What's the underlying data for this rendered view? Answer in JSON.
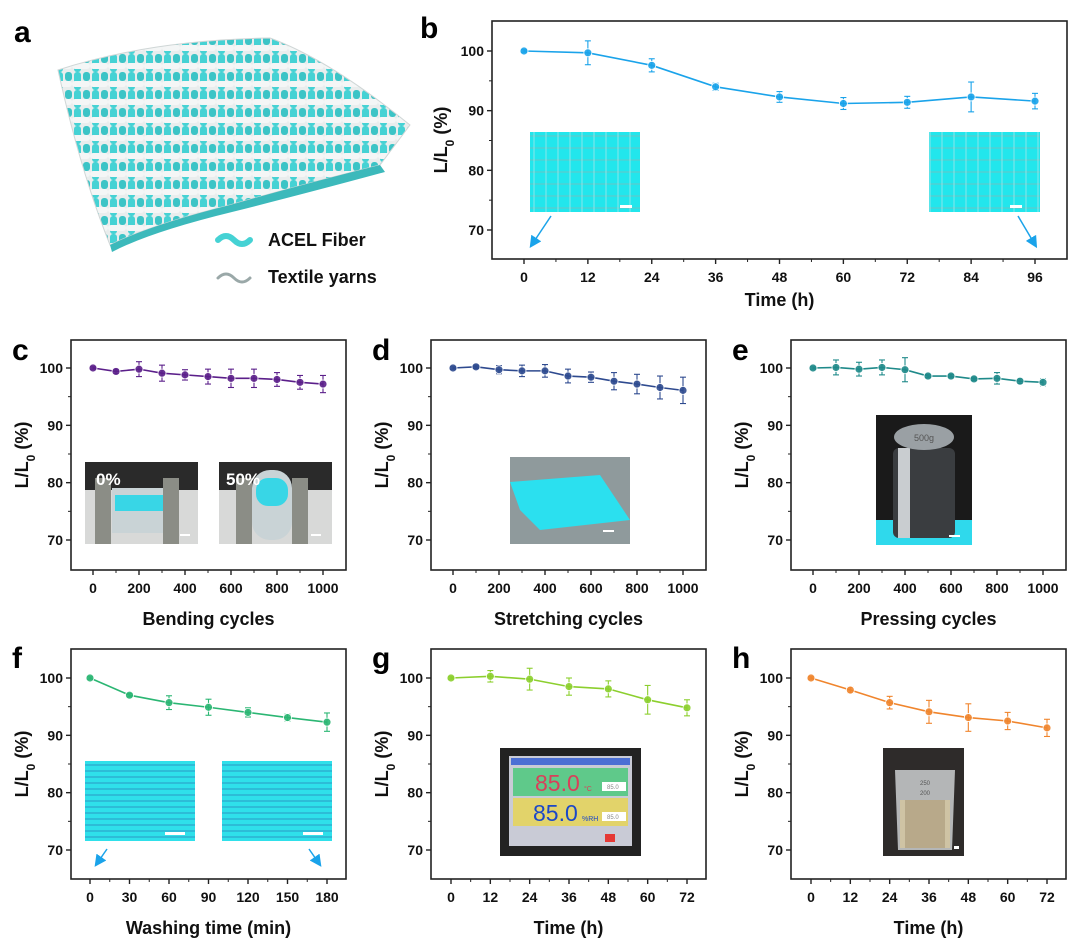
{
  "figure": {
    "panel_a": {
      "label": "a",
      "legend": [
        {
          "name": "ACEL Fiber",
          "color": "#3fd3d6"
        },
        {
          "name": "Textile yarns",
          "color": "#9aa8a8"
        }
      ]
    },
    "insets": {
      "scale_bar": "white",
      "e_weight_text": "500g",
      "g_screen_temp": "85.0",
      "g_screen_temp_unit": "°C",
      "g_screen_rh": "85.0",
      "g_screen_rh_unit": "%RH",
      "g_screen_sv1": "85.0",
      "g_screen_sv2": "85.0",
      "h_beaker_marks": [
        "250",
        "200"
      ],
      "c_left_label": "0%",
      "c_right_label": "50%"
    }
  },
  "chart_data": [
    {
      "id": "b",
      "label": "b",
      "type": "line",
      "title": "",
      "xlabel": "Time (h)",
      "ylabel": "L/L0 (%)",
      "x": [
        0,
        12,
        24,
        36,
        48,
        60,
        72,
        84,
        96
      ],
      "series": [
        {
          "name": "L/L0",
          "color": "#1aa3ea",
          "values": [
            100,
            99.7,
            97.6,
            94.0,
            92.3,
            91.2,
            91.4,
            92.3,
            91.6
          ],
          "errors": [
            0.2,
            2.0,
            1.1,
            0.6,
            0.9,
            1.0,
            1.0,
            2.5,
            1.3
          ]
        }
      ],
      "xticks": [
        0,
        12,
        24,
        36,
        48,
        60,
        72,
        84,
        96
      ],
      "yticks": [
        70,
        80,
        90,
        100
      ],
      "xlim": [
        -4,
        100
      ],
      "ylim": [
        65,
        105
      ],
      "annotations": [
        "inset photo at 0 h with arrow to x=0",
        "inset photo at 96 h with arrow to x=96"
      ]
    },
    {
      "id": "c",
      "label": "c",
      "type": "line",
      "xlabel": "Bending cycles",
      "ylabel": "L/L0 (%)",
      "x": [
        0,
        100,
        200,
        300,
        400,
        500,
        600,
        700,
        800,
        900,
        1000
      ],
      "series": [
        {
          "name": "L/L0",
          "color": "#5b1f8a",
          "values": [
            100,
            99.4,
            99.8,
            99.1,
            98.8,
            98.5,
            98.2,
            98.2,
            98.0,
            97.5,
            97.2
          ],
          "errors": [
            0.2,
            0.4,
            1.3,
            1.4,
            0.9,
            1.3,
            1.6,
            1.6,
            1.2,
            1.2,
            1.5
          ]
        }
      ],
      "xticks": [
        0,
        200,
        400,
        600,
        800,
        1000
      ],
      "yticks": [
        70,
        80,
        90,
        100
      ],
      "xlim": [
        -100,
        1100
      ],
      "ylim": [
        65,
        105
      ],
      "annotations": [
        "0%",
        "50%"
      ]
    },
    {
      "id": "d",
      "label": "d",
      "type": "line",
      "xlabel": "Stretching cycles",
      "ylabel": "L/L0 (%)",
      "x": [
        0,
        100,
        200,
        300,
        400,
        500,
        600,
        700,
        800,
        900,
        1000
      ],
      "series": [
        {
          "name": "L/L0",
          "color": "#2e4a8f",
          "values": [
            100,
            100.2,
            99.7,
            99.5,
            99.5,
            98.6,
            98.4,
            97.7,
            97.2,
            96.6,
            96.1
          ],
          "errors": [
            0.2,
            0.3,
            0.7,
            1.0,
            1.1,
            1.2,
            0.9,
            1.5,
            1.7,
            2.0,
            2.3
          ]
        }
      ],
      "xticks": [
        0,
        200,
        400,
        600,
        800,
        1000
      ],
      "yticks": [
        70,
        80,
        90,
        100
      ],
      "xlim": [
        -100,
        1100
      ],
      "ylim": [
        65,
        105
      ]
    },
    {
      "id": "e",
      "label": "e",
      "type": "line",
      "xlabel": "Pressing cycles",
      "ylabel": "L/L0 (%)",
      "x": [
        0,
        100,
        200,
        300,
        400,
        500,
        600,
        700,
        800,
        900,
        1000
      ],
      "series": [
        {
          "name": "L/L0",
          "color": "#1f8a8a",
          "values": [
            100,
            100.1,
            99.8,
            100.1,
            99.7,
            98.6,
            98.6,
            98.1,
            98.2,
            97.7,
            97.5
          ],
          "errors": [
            0.2,
            1.3,
            1.2,
            1.3,
            2.1,
            0.3,
            0.3,
            0.3,
            1.0,
            0.4,
            0.6
          ]
        }
      ],
      "xticks": [
        0,
        200,
        400,
        600,
        800,
        1000
      ],
      "yticks": [
        70,
        80,
        90,
        100
      ],
      "xlim": [
        -100,
        1100
      ],
      "ylim": [
        65,
        105
      ]
    },
    {
      "id": "f",
      "label": "f",
      "type": "line",
      "xlabel": "Washing time (min)",
      "ylabel": "L/L0 (%)",
      "x": [
        0,
        30,
        60,
        90,
        120,
        150,
        180
      ],
      "series": [
        {
          "name": "L/L0",
          "color": "#2bb673",
          "values": [
            100,
            97.0,
            95.7,
            94.9,
            94.0,
            93.1,
            92.3
          ],
          "errors": [
            0.2,
            0.3,
            1.2,
            1.4,
            0.8,
            0.6,
            1.6
          ]
        }
      ],
      "xticks": [
        0,
        30,
        60,
        90,
        120,
        150,
        180
      ],
      "yticks": [
        70,
        80,
        90,
        100
      ],
      "xlim": [
        -10,
        190
      ],
      "ylim": [
        65,
        105
      ],
      "annotations": [
        "inset photo at 0 min with arrow to x=0",
        "inset photo at 180 min with arrow to x=180"
      ]
    },
    {
      "id": "g",
      "label": "g",
      "type": "line",
      "xlabel": "Time (h)",
      "ylabel": "L/L0 (%)",
      "x": [
        0,
        12,
        24,
        36,
        48,
        60,
        72
      ],
      "series": [
        {
          "name": "L/L0",
          "color": "#8ccf2e",
          "values": [
            100,
            100.3,
            99.8,
            98.5,
            98.1,
            96.2,
            94.8
          ],
          "errors": [
            0.2,
            1.0,
            1.9,
            1.5,
            1.4,
            2.5,
            1.4
          ]
        }
      ],
      "xticks": [
        0,
        12,
        24,
        36,
        48,
        60,
        72
      ],
      "yticks": [
        70,
        80,
        90,
        100
      ],
      "xlim": [
        -4,
        76
      ],
      "ylim": [
        65,
        105
      ]
    },
    {
      "id": "h",
      "label": "h",
      "type": "line",
      "xlabel": "Time (h)",
      "ylabel": "L/L0 (%)",
      "x": [
        0,
        12,
        24,
        36,
        48,
        60,
        72
      ],
      "series": [
        {
          "name": "L/L0",
          "color": "#f0852d",
          "values": [
            100,
            97.9,
            95.7,
            94.1,
            93.1,
            92.5,
            91.3
          ],
          "errors": [
            0.2,
            0.5,
            1.1,
            2.0,
            2.4,
            1.5,
            1.5
          ]
        }
      ],
      "xticks": [
        0,
        12,
        24,
        36,
        48,
        60,
        72
      ],
      "yticks": [
        70,
        80,
        90,
        100
      ],
      "xlim": [
        -4,
        76
      ],
      "ylim": [
        65,
        105
      ]
    }
  ]
}
